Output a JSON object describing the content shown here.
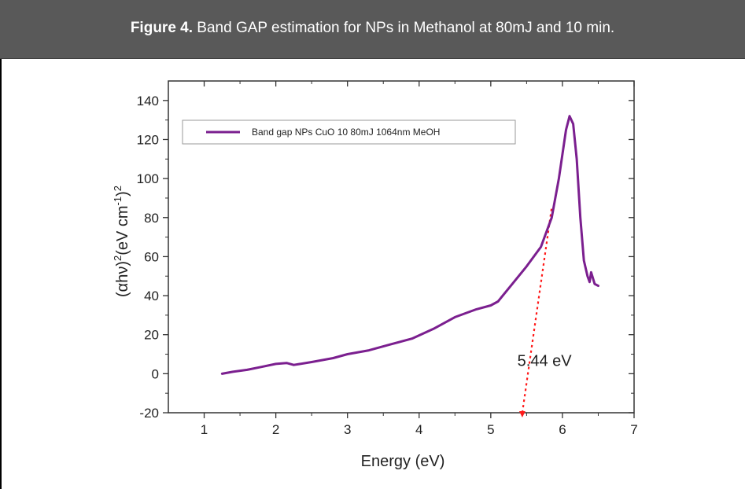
{
  "caption": {
    "label": "Figure 4.",
    "text": " Band GAP estimation for NPs in Methanol at 80mJ and 10 min."
  },
  "chart_data": {
    "type": "line",
    "xlabel": "Energy (eV)",
    "ylabel_parts": [
      "(αhν)",
      "2",
      "(eV cm",
      "-1",
      ")",
      "2"
    ],
    "xlim": [
      0.5,
      7
    ],
    "ylim": [
      -20,
      150
    ],
    "xticks": [
      1,
      2,
      3,
      4,
      5,
      6,
      7
    ],
    "yticks": [
      -20,
      0,
      20,
      40,
      60,
      80,
      100,
      120,
      140
    ],
    "grid": false,
    "legend_position": "top-left",
    "colors": {
      "series": "#7b1f8f",
      "fit": "#ff1a1a"
    },
    "series": [
      {
        "name": "Band gap NPs CuO 10 80mJ 1064nm MeOH",
        "x": [
          1.25,
          1.4,
          1.6,
          1.8,
          2.0,
          2.15,
          2.25,
          2.5,
          2.8,
          3.0,
          3.3,
          3.6,
          3.9,
          4.2,
          4.5,
          4.8,
          5.0,
          5.1,
          5.3,
          5.5,
          5.7,
          5.85,
          5.95,
          6.05,
          6.1,
          6.15,
          6.2,
          6.25,
          6.3,
          6.35,
          6.38,
          6.4,
          6.45,
          6.5
        ],
        "y": [
          0,
          1,
          2,
          3.5,
          5,
          5.5,
          4.5,
          6,
          8,
          10,
          12,
          15,
          18,
          23,
          29,
          33,
          35,
          37,
          46,
          55,
          65,
          80,
          100,
          125,
          132,
          128,
          110,
          80,
          58,
          50,
          47,
          52,
          46,
          45
        ]
      }
    ],
    "fit_line": {
      "x": [
        5.44,
        5.85
      ],
      "y": [
        -20,
        85
      ]
    },
    "annotations": [
      {
        "text": "5.44 eV",
        "x": 5.75,
        "y": 4
      }
    ]
  }
}
